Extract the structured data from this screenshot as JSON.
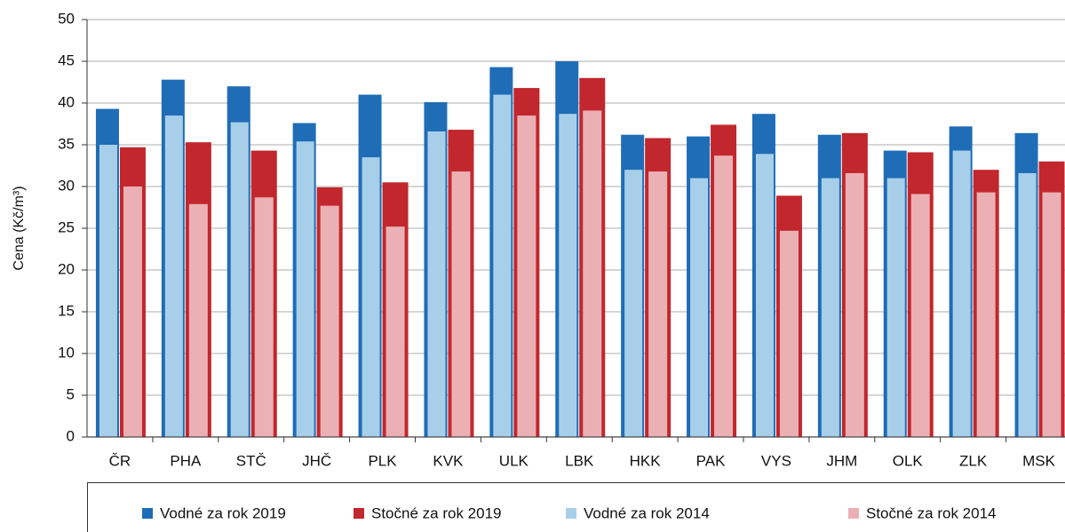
{
  "chart_data": {
    "type": "bar",
    "y_label": "Cena (Kč/m³)",
    "categories": [
      "ČR",
      "PHA",
      "STČ",
      "JHČ",
      "PLK",
      "KVK",
      "ULK",
      "LBK",
      "HKK",
      "PAK",
      "VYS",
      "JHM",
      "OLK",
      "ZLK",
      "MSK"
    ],
    "series": [
      {
        "name": "Vodné za rok 2019",
        "color": "#1f6db6",
        "values": [
          39.3,
          42.8,
          42.0,
          37.6,
          41.0,
          40.1,
          44.3,
          45.0,
          36.2,
          36.0,
          38.7,
          36.2,
          34.3,
          37.2,
          36.4
        ]
      },
      {
        "name": "Stočné za rok 2019",
        "color": "#c1272d",
        "values": [
          34.7,
          35.3,
          34.3,
          29.9,
          30.5,
          36.8,
          41.8,
          43.0,
          35.8,
          37.4,
          28.9,
          36.4,
          34.1,
          32.0,
          33.0
        ]
      },
      {
        "name": "Vodné za rok 2014",
        "color": "#a8cfea",
        "values": [
          35.0,
          38.5,
          37.7,
          35.4,
          33.5,
          36.6,
          41.0,
          38.7,
          32.0,
          31.0,
          33.9,
          31.0,
          31.0,
          34.3,
          31.6
        ]
      },
      {
        "name": "Stočné za rok 2014",
        "color": "#ebb0b4",
        "values": [
          30.0,
          27.9,
          28.7,
          27.7,
          25.2,
          31.8,
          38.5,
          39.1,
          31.8,
          33.7,
          24.7,
          31.6,
          29.1,
          29.3,
          29.3
        ]
      }
    ],
    "ylim": [
      0,
      50
    ],
    "yticks": [
      0,
      5,
      10,
      15,
      20,
      25,
      30,
      35,
      40,
      45,
      50
    ],
    "grid": true
  }
}
